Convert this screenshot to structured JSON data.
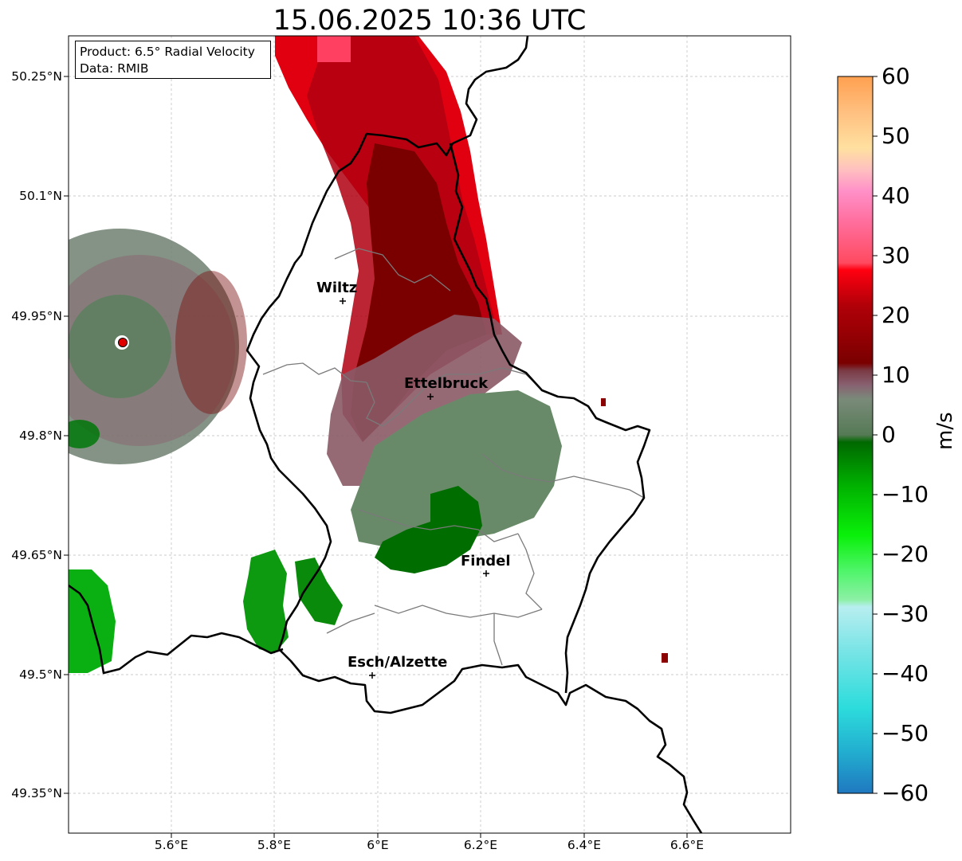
{
  "title": "15.06.2025 10:36 UTC",
  "info": {
    "product": "Product: 6.5° Radial Velocity",
    "data_source": "Data: RMIB"
  },
  "lat_ticks": [
    "50.25°N",
    "50.1°N",
    "49.95°N",
    "49.8°N",
    "49.65°N",
    "49.5°N",
    "49.35°N"
  ],
  "lon_ticks": [
    "5.6°E",
    "5.8°E",
    "6°E",
    "6.2°E",
    "6.4°E",
    "6.6°E"
  ],
  "cities": [
    {
      "name": "Wiltz"
    },
    {
      "name": "Ettelbruck"
    },
    {
      "name": "Findel"
    },
    {
      "name": "Esch/Alzette"
    }
  ],
  "colorbar": {
    "label": "m/s",
    "ticks": [
      "60",
      "50",
      "40",
      "30",
      "20",
      "10",
      "0",
      "−10",
      "−20",
      "−30",
      "−40",
      "−50",
      "−60"
    ],
    "min": -60,
    "max": 60,
    "colors": {
      "strong_away": "#ff0018",
      "moderate_away": "#8b0000",
      "weak_away": "#875a64",
      "near_zero": "#6b866b",
      "weak_toward": "#006a00",
      "moderate_toward": "#00e000",
      "light_green": "#8ff0a8",
      "light_cyan": "#b7eef0",
      "strong_toward": "#2a86c6",
      "extreme_away": "#ffa050"
    }
  }
}
